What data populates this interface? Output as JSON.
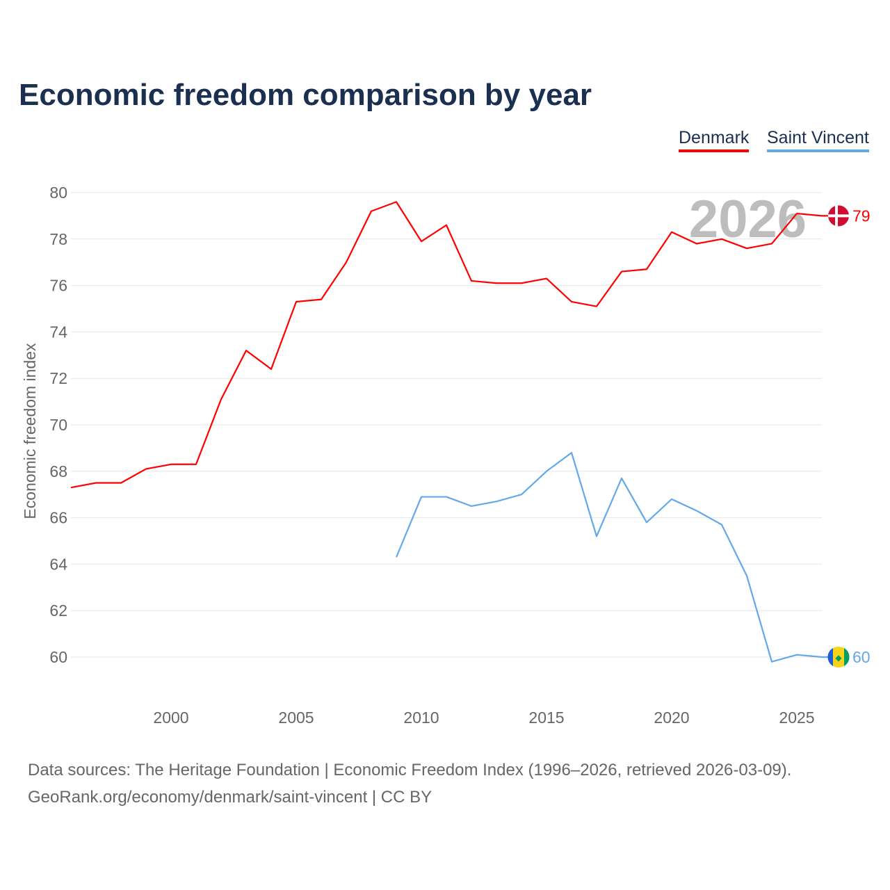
{
  "chart_data": {
    "type": "line",
    "title": "Economic freedom comparison by year",
    "xlabel": "",
    "ylabel": "Economic freedom index",
    "xlim": [
      1996,
      2026
    ],
    "ylim": [
      58,
      80.5
    ],
    "yticks": [
      60,
      62,
      64,
      66,
      68,
      70,
      72,
      74,
      76,
      78,
      80
    ],
    "xticks": [
      2000,
      2005,
      2010,
      2015,
      2020,
      2025
    ],
    "grid": true,
    "legend_position": "top-right",
    "annotation": "2026",
    "series": [
      {
        "name": "Denmark",
        "color": "#ff0000",
        "end_label": "79",
        "x": [
          1996,
          1997,
          1998,
          1999,
          2000,
          2001,
          2002,
          2003,
          2004,
          2005,
          2006,
          2007,
          2008,
          2009,
          2010,
          2011,
          2012,
          2013,
          2014,
          2015,
          2016,
          2017,
          2018,
          2019,
          2020,
          2021,
          2022,
          2023,
          2024,
          2025,
          2026
        ],
        "values": [
          67.3,
          67.5,
          67.5,
          68.1,
          68.3,
          68.3,
          71.1,
          73.2,
          72.4,
          75.3,
          75.4,
          77.0,
          79.2,
          79.6,
          77.9,
          78.6,
          76.2,
          76.1,
          76.1,
          76.3,
          75.3,
          75.1,
          76.6,
          76.7,
          78.3,
          77.8,
          78.0,
          77.6,
          77.8,
          79.1,
          79.0
        ]
      },
      {
        "name": "Saint Vincent",
        "color": "#62a8ea",
        "end_label": "60",
        "x": [
          2009,
          2010,
          2011,
          2012,
          2013,
          2014,
          2015,
          2016,
          2017,
          2018,
          2019,
          2020,
          2021,
          2022,
          2023,
          2024,
          2025,
          2026
        ],
        "values": [
          64.3,
          66.9,
          66.9,
          66.5,
          66.7,
          67.0,
          68.0,
          68.8,
          65.2,
          67.7,
          65.8,
          66.8,
          66.3,
          65.7,
          63.5,
          59.8,
          60.1,
          60.0
        ]
      }
    ]
  },
  "footer": {
    "line1": "Data sources: The Heritage Foundation | Economic Freedom Index (1996–2026, retrieved 2026-03-09).",
    "line2": "GeoRank.org/economy/denmark/saint-vincent | CC BY"
  }
}
